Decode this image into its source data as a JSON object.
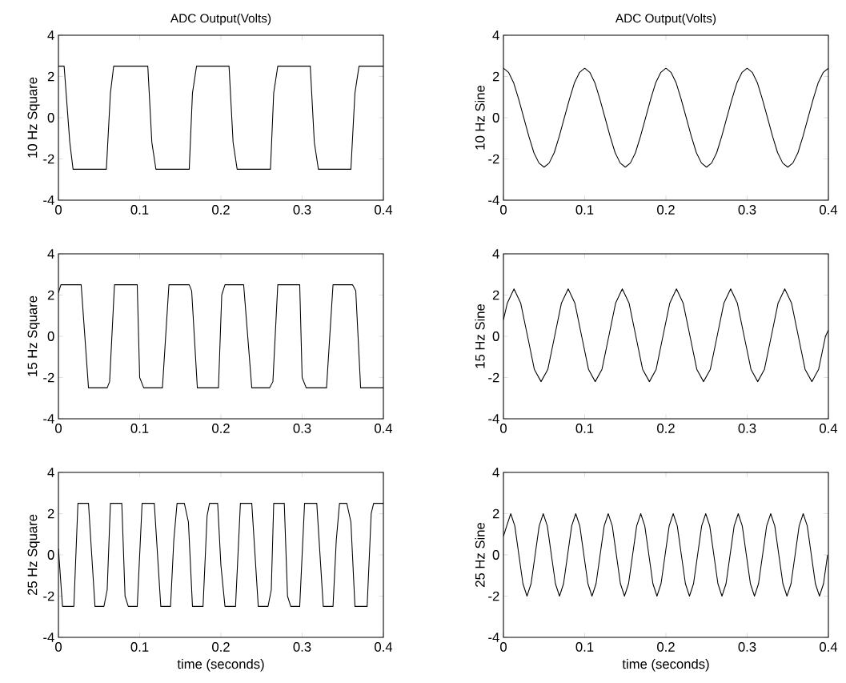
{
  "chart_data": [
    {
      "type": "line",
      "title": "ADC Output(Volts)",
      "ylabel": "10 Hz Square",
      "xlim": [
        0,
        0.4
      ],
      "ylim": [
        -4,
        4
      ],
      "xticks": [
        0,
        0.1,
        0.2,
        0.3,
        0.4
      ],
      "yticks": [
        -4,
        -2,
        0,
        2,
        4
      ],
      "series": [
        {
          "color": "#000000",
          "x": [
            0,
            0.007,
            0.014,
            0.018,
            0.059,
            0.064,
            0.068,
            0.11,
            0.115,
            0.12,
            0.161,
            0.165,
            0.17,
            0.21,
            0.215,
            0.22,
            0.261,
            0.265,
            0.27,
            0.31,
            0.315,
            0.32,
            0.36,
            0.365,
            0.37,
            0.4
          ],
          "values": [
            2.5,
            2.5,
            -1.2,
            -2.5,
            -2.5,
            1.2,
            2.5,
            2.5,
            -1.2,
            -2.5,
            -2.5,
            1.2,
            2.5,
            2.5,
            -1.2,
            -2.5,
            -2.5,
            1.2,
            2.5,
            2.5,
            -1.2,
            -2.5,
            -2.5,
            1.2,
            2.5,
            2.5
          ]
        }
      ]
    },
    {
      "type": "line",
      "title": "ADC Output(Volts)",
      "ylabel": "10 Hz Sine",
      "xlim": [
        0,
        0.4
      ],
      "ylim": [
        -4,
        4
      ],
      "xticks": [
        0,
        0.1,
        0.2,
        0.3,
        0.4
      ],
      "yticks": [
        -4,
        -2,
        0,
        2,
        4
      ],
      "series": [
        {
          "color": "#000000",
          "x": [
            0,
            0.00625,
            0.0125,
            0.01875,
            0.025,
            0.03125,
            0.0375,
            0.04375,
            0.05,
            0.05625,
            0.0625,
            0.06875,
            0.075,
            0.08125,
            0.0875,
            0.09375,
            0.1,
            0.10625,
            0.1125,
            0.11875,
            0.125,
            0.13125,
            0.1375,
            0.14375,
            0.15,
            0.15625,
            0.1625,
            0.16875,
            0.175,
            0.18125,
            0.1875,
            0.19375,
            0.2,
            0.20625,
            0.2125,
            0.21875,
            0.225,
            0.23125,
            0.2375,
            0.24375,
            0.25,
            0.25625,
            0.2625,
            0.26875,
            0.275,
            0.28125,
            0.2875,
            0.29375,
            0.3,
            0.30625,
            0.3125,
            0.31875,
            0.325,
            0.33125,
            0.3375,
            0.34375,
            0.35,
            0.35625,
            0.3625,
            0.36875,
            0.375,
            0.38125,
            0.3875,
            0.39375,
            0.4
          ],
          "values": [
            2.4,
            2.2,
            1.7,
            0.9,
            0,
            -0.9,
            -1.7,
            -2.2,
            -2.4,
            -2.2,
            -1.7,
            -0.9,
            0,
            0.9,
            1.7,
            2.2,
            2.4,
            2.2,
            1.7,
            0.9,
            0,
            -0.9,
            -1.7,
            -2.2,
            -2.4,
            -2.2,
            -1.7,
            -0.9,
            0,
            0.9,
            1.7,
            2.2,
            2.4,
            2.2,
            1.7,
            0.9,
            0,
            -0.9,
            -1.7,
            -2.2,
            -2.4,
            -2.2,
            -1.7,
            -0.9,
            0,
            0.9,
            1.7,
            2.2,
            2.4,
            2.2,
            1.7,
            0.9,
            0,
            -0.9,
            -1.7,
            -2.2,
            -2.4,
            -2.2,
            -1.7,
            -0.9,
            0,
            0.9,
            1.7,
            2.2,
            2.4
          ]
        }
      ]
    },
    {
      "type": "line",
      "ylabel": "15 Hz Square",
      "xlim": [
        0,
        0.4
      ],
      "ylim": [
        -4,
        4
      ],
      "xticks": [
        0,
        0.1,
        0.2,
        0.3,
        0.4
      ],
      "yticks": [
        -4,
        -2,
        0,
        2,
        4
      ],
      "series": [
        {
          "color": "#000000",
          "x": [
            0,
            0.003,
            0.028,
            0.037,
            0.06,
            0.063,
            0.069,
            0.097,
            0.1,
            0.105,
            0.128,
            0.136,
            0.161,
            0.164,
            0.171,
            0.197,
            0.201,
            0.205,
            0.228,
            0.238,
            0.26,
            0.264,
            0.27,
            0.297,
            0.3,
            0.305,
            0.33,
            0.338,
            0.362,
            0.366,
            0.372,
            0.4
          ],
          "values": [
            2.1,
            2.5,
            2.5,
            -2.5,
            -2.5,
            -2.2,
            2.5,
            2.5,
            -2.0,
            -2.5,
            -2.5,
            2.5,
            2.5,
            2.2,
            -2.5,
            -2.5,
            2.0,
            2.5,
            2.5,
            -2.5,
            -2.5,
            -2.2,
            2.5,
            2.5,
            -2.0,
            -2.5,
            -2.5,
            2.5,
            2.5,
            2.2,
            -2.5,
            -2.5
          ]
        }
      ]
    },
    {
      "type": "line",
      "ylabel": "15 Hz Sine",
      "xlim": [
        0,
        0.4
      ],
      "ylim": [
        -4,
        4
      ],
      "xticks": [
        0,
        0.1,
        0.2,
        0.3,
        0.4
      ],
      "yticks": [
        -4,
        -2,
        0,
        2,
        4
      ],
      "series": [
        {
          "color": "#000000",
          "x": [
            0,
            0.0047,
            0.013,
            0.0213,
            0.0297,
            0.038,
            0.0463,
            0.0547,
            0.063,
            0.0713,
            0.0797,
            0.088,
            0.0963,
            0.1047,
            0.113,
            0.1213,
            0.1297,
            0.138,
            0.1463,
            0.1547,
            0.163,
            0.1713,
            0.1797,
            0.188,
            0.1963,
            0.2047,
            0.213,
            0.2213,
            0.2297,
            0.238,
            0.2463,
            0.2547,
            0.263,
            0.2713,
            0.2797,
            0.288,
            0.2963,
            0.3047,
            0.313,
            0.3213,
            0.3297,
            0.338,
            0.3463,
            0.3547,
            0.363,
            0.3713,
            0.3797,
            0.388,
            0.3964,
            0.4
          ],
          "values": [
            0.8,
            1.6,
            2.3,
            1.6,
            0,
            -1.6,
            -2.2,
            -1.6,
            0,
            1.6,
            2.3,
            1.6,
            0,
            -1.6,
            -2.2,
            -1.6,
            0,
            1.6,
            2.3,
            1.6,
            0,
            -1.6,
            -2.2,
            -1.6,
            0,
            1.6,
            2.3,
            1.6,
            0,
            -1.6,
            -2.2,
            -1.6,
            0,
            1.6,
            2.3,
            1.6,
            0,
            -1.6,
            -2.2,
            -1.6,
            0,
            1.6,
            2.3,
            1.6,
            0,
            -1.6,
            -2.2,
            -1.6,
            0,
            0.3
          ]
        }
      ]
    },
    {
      "type": "line",
      "ylabel": "25 Hz Square",
      "xlabel": "time (seconds)",
      "xlim": [
        0,
        0.4
      ],
      "ylim": [
        -4,
        4
      ],
      "xticks": [
        0,
        0.1,
        0.2,
        0.3,
        0.4
      ],
      "yticks": [
        -4,
        -2,
        0,
        2,
        4
      ],
      "series": [
        {
          "color": "#000000",
          "x": [
            0,
            0.005,
            0.019,
            0.024,
            0.037,
            0.04,
            0.045,
            0.056,
            0.06,
            0.064,
            0.078,
            0.082,
            0.086,
            0.097,
            0.103,
            0.118,
            0.126,
            0.138,
            0.142,
            0.146,
            0.155,
            0.16,
            0.165,
            0.178,
            0.183,
            0.186,
            0.196,
            0.2,
            0.205,
            0.218,
            0.224,
            0.238,
            0.246,
            0.258,
            0.262,
            0.265,
            0.278,
            0.282,
            0.286,
            0.297,
            0.303,
            0.318,
            0.326,
            0.338,
            0.342,
            0.346,
            0.355,
            0.36,
            0.365,
            0.38,
            0.385,
            0.388,
            0.4
          ],
          "values": [
            0.3,
            -2.5,
            -2.5,
            2.5,
            2.5,
            0.6,
            -2.5,
            -2.5,
            -1.7,
            2.5,
            2.5,
            -2.0,
            -2.5,
            -2.5,
            2.5,
            2.5,
            -2.5,
            -2.5,
            0.7,
            2.5,
            2.5,
            1.6,
            -2.5,
            -2.5,
            1.9,
            2.5,
            2.5,
            -0.5,
            -2.5,
            -2.5,
            2.5,
            2.5,
            -2.5,
            -2.5,
            -1.7,
            2.5,
            2.5,
            -2.0,
            -2.5,
            -2.5,
            2.5,
            2.5,
            -2.5,
            -2.5,
            0.7,
            2.5,
            2.5,
            1.6,
            -2.5,
            -2.5,
            2.0,
            2.5,
            2.5
          ]
        }
      ]
    },
    {
      "type": "line",
      "ylabel": "25 Hz Sine",
      "xlabel": "time (seconds)",
      "xlim": [
        0,
        0.4
      ],
      "ylim": [
        -4,
        4
      ],
      "xticks": [
        0,
        0.1,
        0.2,
        0.3,
        0.4
      ],
      "yticks": [
        -4,
        -2,
        0,
        2,
        4
      ],
      "series": [
        {
          "color": "#000000",
          "x": [
            0,
            0.004,
            0.009,
            0.014,
            0.019,
            0.024,
            0.029,
            0.034,
            0.039,
            0.044,
            0.049,
            0.054,
            0.059,
            0.064,
            0.069,
            0.074,
            0.079,
            0.084,
            0.089,
            0.094,
            0.099,
            0.104,
            0.109,
            0.114,
            0.119,
            0.124,
            0.129,
            0.134,
            0.139,
            0.144,
            0.149,
            0.154,
            0.159,
            0.164,
            0.169,
            0.174,
            0.179,
            0.184,
            0.189,
            0.194,
            0.199,
            0.204,
            0.209,
            0.214,
            0.219,
            0.224,
            0.229,
            0.234,
            0.239,
            0.244,
            0.249,
            0.254,
            0.259,
            0.264,
            0.269,
            0.274,
            0.279,
            0.284,
            0.289,
            0.294,
            0.299,
            0.304,
            0.309,
            0.314,
            0.319,
            0.324,
            0.329,
            0.334,
            0.339,
            0.344,
            0.349,
            0.354,
            0.359,
            0.364,
            0.369,
            0.374,
            0.379,
            0.384,
            0.389,
            0.394,
            0.399
          ],
          "values": [
            0.9,
            1.4,
            2.0,
            1.4,
            0,
            -1.4,
            -2.0,
            -1.4,
            0,
            1.4,
            2.0,
            1.4,
            0,
            -1.4,
            -2.0,
            -1.4,
            0,
            1.4,
            2.0,
            1.4,
            0,
            -1.4,
            -2.0,
            -1.4,
            0,
            1.4,
            2.0,
            1.4,
            0,
            -1.4,
            -2.0,
            -1.4,
            0,
            1.4,
            2.0,
            1.4,
            0,
            -1.4,
            -2.0,
            -1.4,
            0,
            1.4,
            2.0,
            1.4,
            0,
            -1.4,
            -2.0,
            -1.4,
            0,
            1.4,
            2.0,
            1.4,
            0,
            -1.4,
            -2.0,
            -1.4,
            0,
            1.4,
            2.0,
            1.4,
            0,
            -1.4,
            -2.0,
            -1.4,
            0,
            1.4,
            2.0,
            1.4,
            0,
            -1.4,
            -2.0,
            -1.4,
            0,
            1.4,
            2.0,
            1.4,
            0,
            -1.4,
            -2.0,
            -1.4,
            0
          ]
        }
      ]
    }
  ]
}
